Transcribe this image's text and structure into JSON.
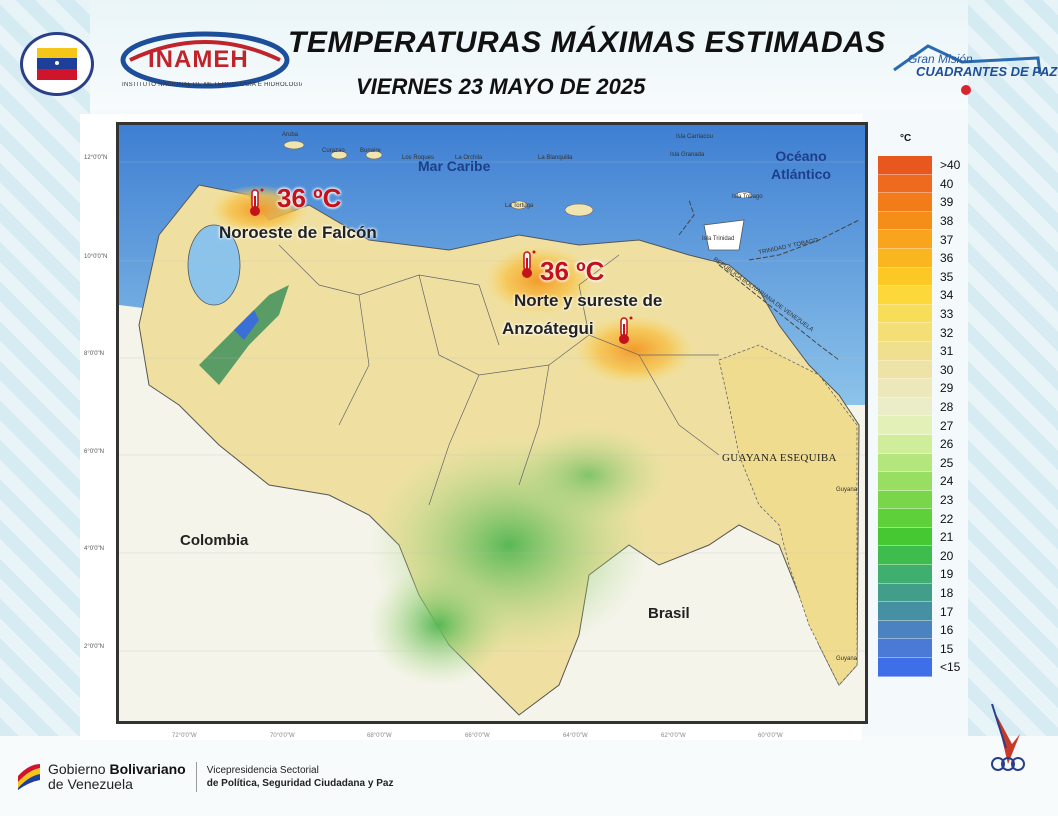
{
  "header": {
    "title": "TEMPERATURAS MÁXIMAS ESTIMADAS",
    "date": "VIERNES 23 MAYO DE 2025",
    "inameh_logo_text": "INAMEH",
    "inameh_subtitle": "INSTITUTO NACIONAL DE METEOROLOGÍA E HIDROLOGÍA",
    "right_logo_line1": "Gran Misión",
    "right_logo_line2": "CUADRANTES DE PAZ"
  },
  "map": {
    "countries": {
      "colombia": "Colombia",
      "brasil": "Brasil"
    },
    "seas": {
      "caribe": "Mar Caribe",
      "atlantico": "Océano Atlántico"
    },
    "small_labels": {
      "aruba": "Aruba",
      "curazao": "Curazao",
      "bonaire": "Bonaire",
      "los_roques": "Los Roques",
      "la_orchila": "La Orchila",
      "la_blanquilla": "La Blanquilla",
      "la_tortuga": "La Tortuga",
      "carriacou": "Isla Carriacou",
      "granada": "Isla Granada",
      "tobago": "Isla Tobago",
      "trinidad": "Isla Trinidad",
      "guyana_1": "Guyana",
      "guyana_2": "Guyana"
    },
    "border_labels": {
      "tt": "TRINIDAD Y TOBAGO",
      "rbv": "REPÚBLICA BOLIVARIANA DE VENEZUELA"
    },
    "guayana_esequiba": "GUAYANA ESEQUIBA",
    "hotspots": [
      {
        "temp": "36 ºC",
        "region": "Noroeste de Falcón"
      },
      {
        "temp": "36 ºC",
        "region_line1": "Norte  y sureste de",
        "region_line2": "Anzoátegui"
      }
    ],
    "lat_ticks": [
      "12°0'0\"N",
      "10°0'0\"N",
      "8°0'0\"N",
      "6°0'0\"N",
      "4°0'0\"N",
      "2°0'0\"N"
    ],
    "lon_ticks": [
      "72°0'0\"W",
      "70°0'0\"W",
      "68°0'0\"W",
      "66°0'0\"W",
      "64°0'0\"W",
      "62°0'0\"W",
      "60°0'0\"W"
    ]
  },
  "legend": {
    "unit": "°C",
    "items": [
      {
        "label": ">40",
        "color": "#e8581e"
      },
      {
        "label": "40",
        "color": "#ee6a1e"
      },
      {
        "label": "39",
        "color": "#f27c1a"
      },
      {
        "label": "38",
        "color": "#f58e18"
      },
      {
        "label": "37",
        "color": "#f8a41c"
      },
      {
        "label": "36",
        "color": "#fab61e"
      },
      {
        "label": "35",
        "color": "#fcc824"
      },
      {
        "label": "34",
        "color": "#fcd83a"
      },
      {
        "label": "33",
        "color": "#f7dd58"
      },
      {
        "label": "32",
        "color": "#f3df75"
      },
      {
        "label": "31",
        "color": "#efe090"
      },
      {
        "label": "30",
        "color": "#eee3a6"
      },
      {
        "label": "29",
        "color": "#ede7bc"
      },
      {
        "label": "28",
        "color": "#eaedc7"
      },
      {
        "label": "27",
        "color": "#e3f0b8"
      },
      {
        "label": "26",
        "color": "#cfed9a"
      },
      {
        "label": "25",
        "color": "#b3e67c"
      },
      {
        "label": "24",
        "color": "#97de62"
      },
      {
        "label": "23",
        "color": "#79d64a"
      },
      {
        "label": "22",
        "color": "#5ed03a"
      },
      {
        "label": "21",
        "color": "#46c832"
      },
      {
        "label": "20",
        "color": "#3ebd4e"
      },
      {
        "label": "19",
        "color": "#3fae6e"
      },
      {
        "label": "18",
        "color": "#429e88"
      },
      {
        "label": "17",
        "color": "#4690a4"
      },
      {
        "label": "16",
        "color": "#4a83c0"
      },
      {
        "label": "15",
        "color": "#4a7ad6"
      },
      {
        "label": "<15",
        "color": "#3f6fe8"
      }
    ]
  },
  "footer": {
    "gob_line1_a": "Gobierno ",
    "gob_line1_b": "Bolivariano",
    "gob_line2": "de Venezuela",
    "vice_line1": "Vicepresidencia Sectorial",
    "vice_line2": "de Política, Seguridad Ciudadana y Paz"
  },
  "colors": {
    "sea": "#6aa7dd",
    "land_base": "#efe3a8",
    "hot": "#f7b23a",
    "title": "#111111",
    "temp_text": "#c4121a"
  }
}
